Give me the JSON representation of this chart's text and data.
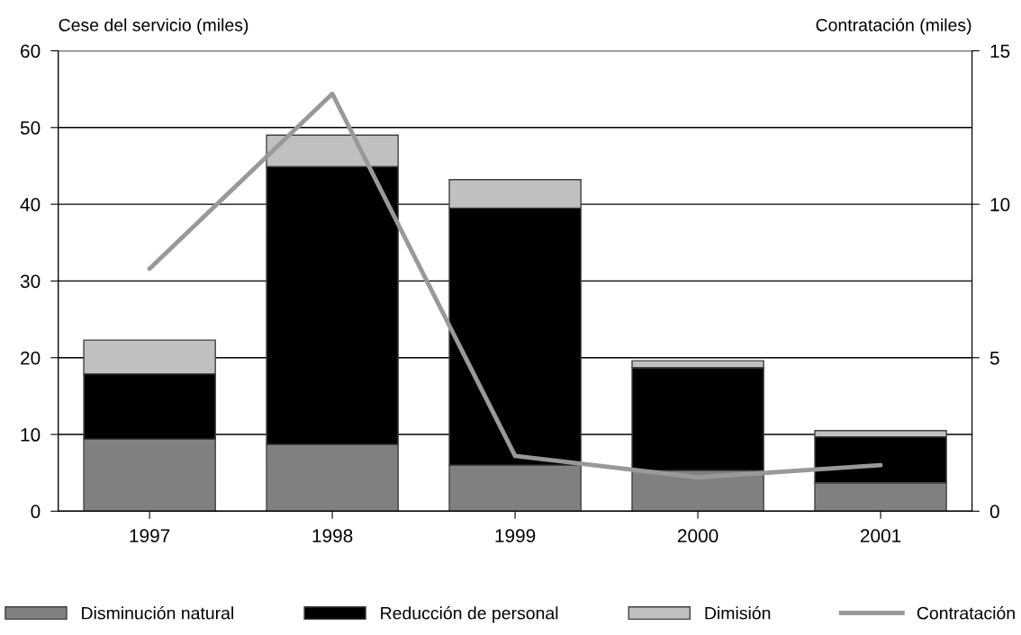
{
  "chart_data": {
    "type": "bar",
    "stacked": true,
    "ylabel": "Cese del servicio (miles)",
    "y2label": "Contratación (miles)",
    "categories": [
      "1997",
      "1998",
      "1999",
      "2000",
      "2001"
    ],
    "series": [
      {
        "name": "Disminución natural",
        "color": "#808080",
        "values": [
          9.4,
          8.7,
          6.0,
          5.3,
          3.7
        ]
      },
      {
        "name": "Reducción de personal",
        "color": "#000000",
        "values": [
          8.5,
          36.2,
          33.5,
          13.4,
          6.0
        ]
      },
      {
        "name": "Dimisión",
        "color": "#c0c0c0",
        "values": [
          4.4,
          4.1,
          3.7,
          0.9,
          0.8
        ]
      },
      {
        "name": "Contratación",
        "type": "line",
        "axis": "y2",
        "color": "#999999",
        "values": [
          7.9,
          13.6,
          1.8,
          1.1,
          1.5
        ]
      }
    ],
    "ylim": [
      0,
      60
    ],
    "yticks": [
      0,
      10,
      20,
      30,
      40,
      50,
      60
    ],
    "y2lim": [
      0,
      15
    ],
    "y2ticks": [
      0,
      5,
      10,
      15
    ],
    "grid": "y",
    "legend": "bottom"
  }
}
